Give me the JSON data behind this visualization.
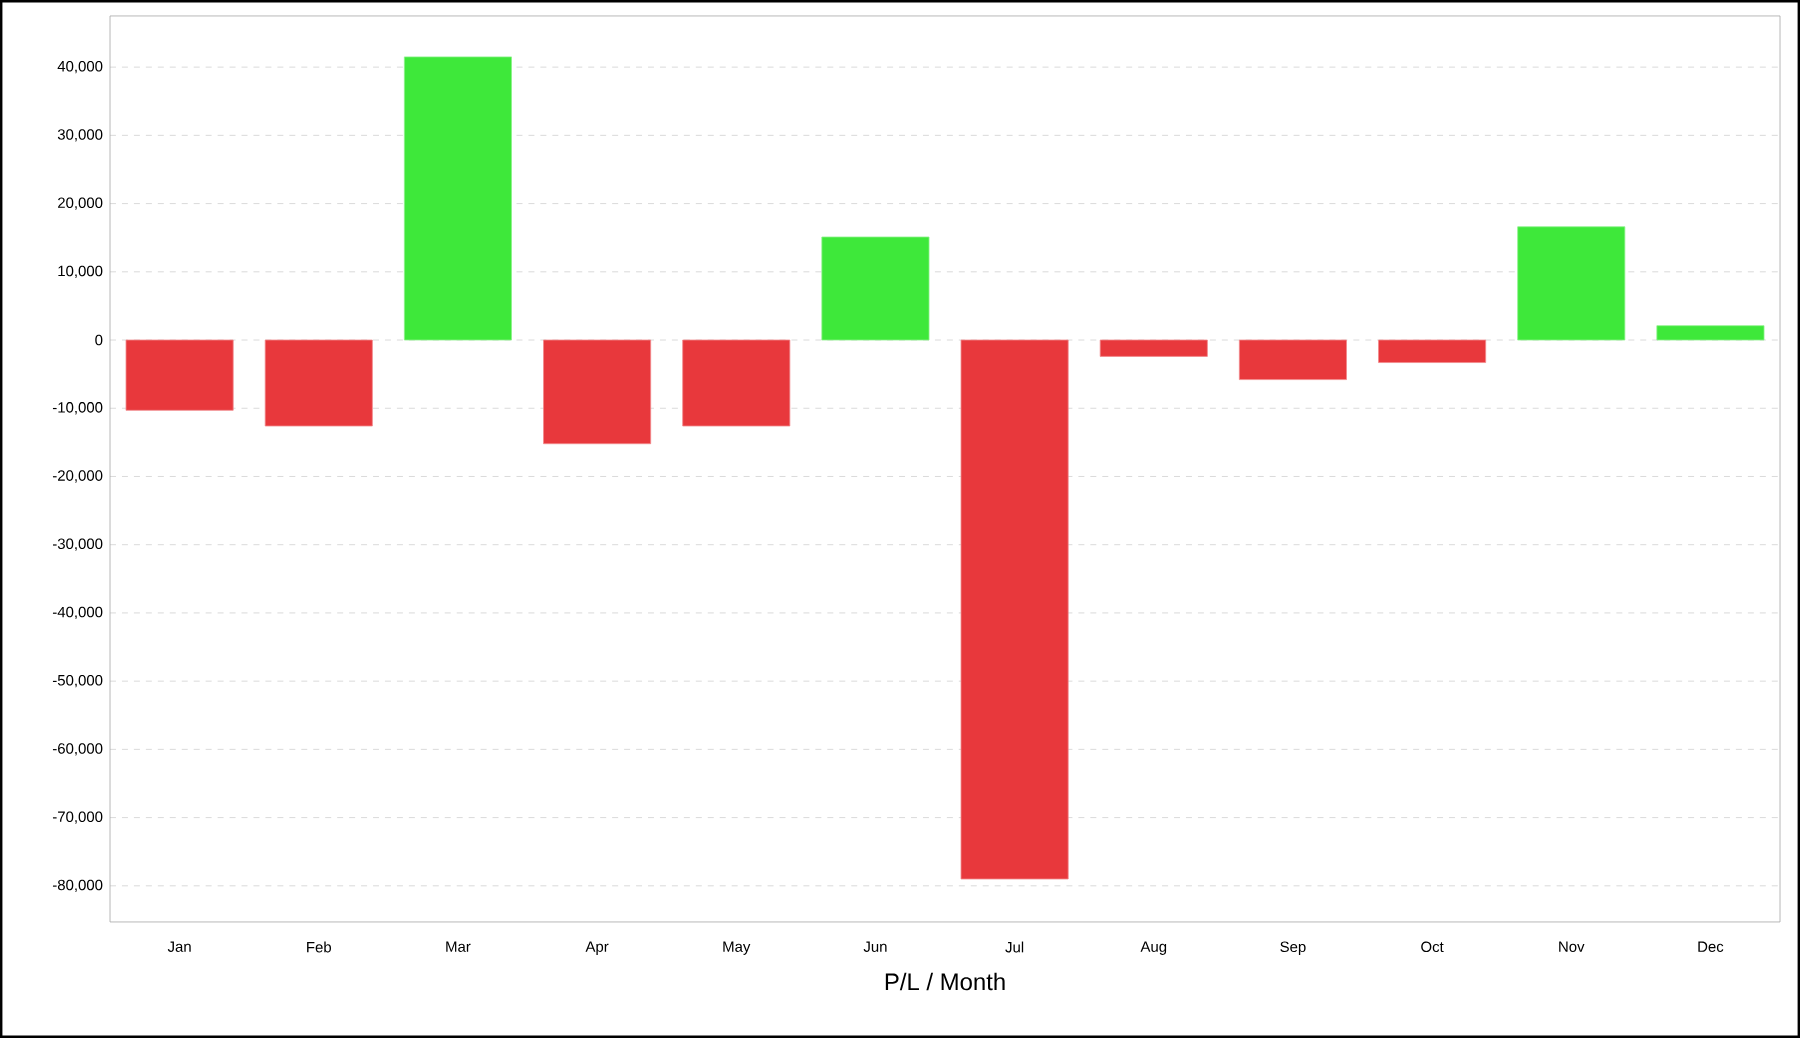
{
  "chart_data": {
    "type": "bar",
    "xlabel": "P/L / Month",
    "categories": [
      "Jan",
      "Feb",
      "Mar",
      "Apr",
      "May",
      "Jun",
      "Jul",
      "Aug",
      "Sep",
      "Oct",
      "Nov",
      "Dec"
    ],
    "values": [
      -10300,
      -12600,
      41500,
      -15200,
      -12600,
      15100,
      -79000,
      -2400,
      -5800,
      -3300,
      16600,
      2100
    ],
    "colors": [
      "#e8383c",
      "#e8383c",
      "#3ee83a",
      "#e8383c",
      "#e8383c",
      "#3ee83a",
      "#e8383c",
      "#e8383c",
      "#e8383c",
      "#e8383c",
      "#3ee83a",
      "#3ee83a"
    ],
    "ylim": [
      -85300,
      47500
    ],
    "yticks": [
      {
        "value": -80000,
        "label": "-80,000"
      },
      {
        "value": -70000,
        "label": "-70,000"
      },
      {
        "value": -60000,
        "label": "-60,000"
      },
      {
        "value": -50000,
        "label": "-50,000"
      },
      {
        "value": -40000,
        "label": "-40,000"
      },
      {
        "value": -30000,
        "label": "-30,000"
      },
      {
        "value": -20000,
        "label": "-20,000"
      },
      {
        "value": -10000,
        "label": "-10,000"
      },
      0,
      {
        "value": 10000,
        "label": "10,000"
      },
      {
        "value": 20000,
        "label": "20,000"
      },
      {
        "value": 30000,
        "label": "30,000"
      },
      {
        "value": 40000,
        "label": "40,000"
      }
    ],
    "grid": "y"
  }
}
